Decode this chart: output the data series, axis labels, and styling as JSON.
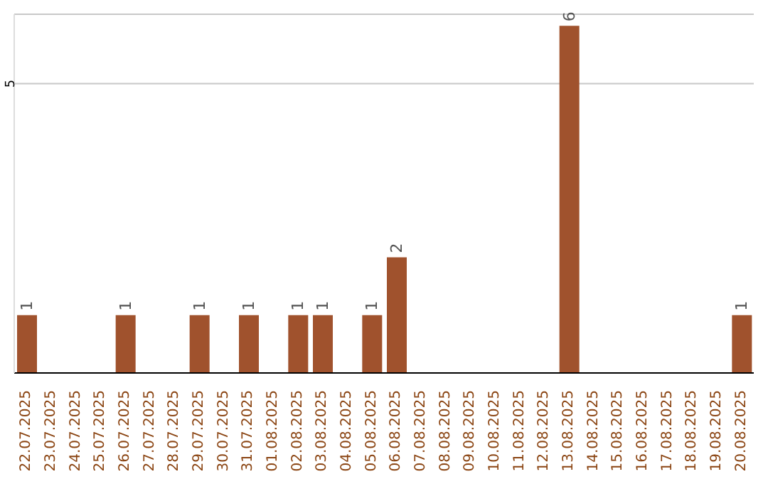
{
  "chart_data": {
    "type": "bar",
    "categories": [
      "22.07.2025",
      "23.07.2025",
      "24.07.2025",
      "25.07.2025",
      "26.07.2025",
      "27.07.2025",
      "28.07.2025",
      "29.07.2025",
      "30.07.2025",
      "31.07.2025",
      "01.08.2025",
      "02.08.2025",
      "03.08.2025",
      "04.08.2025",
      "05.08.2025",
      "06.08.2025",
      "07.08.2025",
      "08.08.2025",
      "09.08.2025",
      "10.08.2025",
      "11.08.2025",
      "12.08.2025",
      "13.08.2025",
      "14.08.2025",
      "15.08.2025",
      "16.08.2025",
      "17.08.2025",
      "18.08.2025",
      "19.08.2025",
      "20.08.2025"
    ],
    "values": [
      1,
      null,
      null,
      null,
      1,
      null,
      null,
      1,
      null,
      1,
      null,
      1,
      1,
      null,
      1,
      2,
      null,
      null,
      null,
      null,
      null,
      null,
      6,
      null,
      null,
      null,
      null,
      null,
      null,
      1
    ],
    "color": "#a0522d",
    "ylim": [
      0,
      6.2
    ],
    "yticks": [
      5
    ],
    "grid": "y",
    "data_labels": true
  }
}
